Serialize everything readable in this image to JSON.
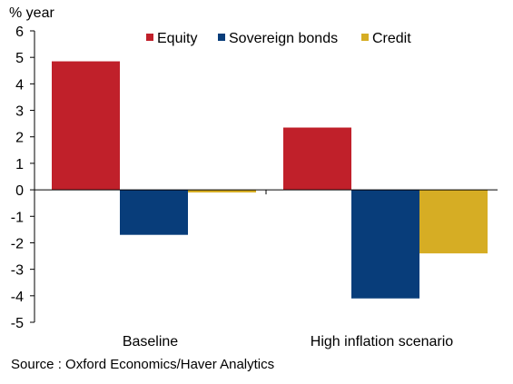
{
  "chart_data": {
    "type": "bar",
    "unit_label": "% year",
    "categories": [
      "Baseline",
      "High inflation scenario"
    ],
    "series": [
      {
        "name": "Equity",
        "color": "#c0202a",
        "values": [
          4.85,
          2.35
        ]
      },
      {
        "name": "Sovereign bonds",
        "color": "#083d7a",
        "values": [
          -1.7,
          -4.1
        ]
      },
      {
        "name": "Credit",
        "color": "#d6ad24",
        "values": [
          -0.1,
          -2.4
        ]
      }
    ],
    "ylim": [
      -5,
      6
    ],
    "yticks": [
      -5,
      -4,
      -3,
      -2,
      -1,
      0,
      1,
      2,
      3,
      4,
      5,
      6
    ],
    "grid": false,
    "legend_position": "top-right",
    "source": "Source : Oxford Economics/Haver Analytics"
  }
}
